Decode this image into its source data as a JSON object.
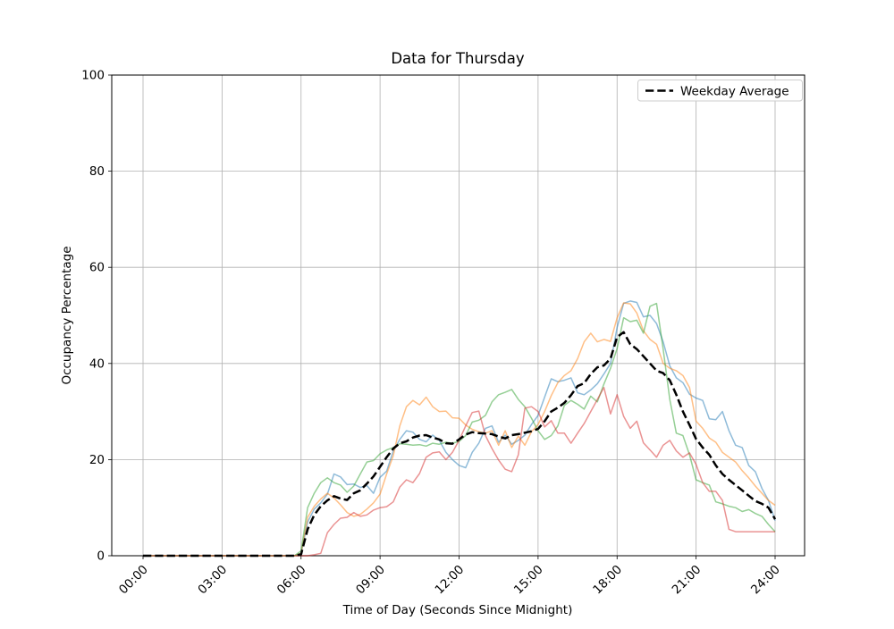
{
  "chart_data": {
    "type": "line",
    "title": "Data for Thursday",
    "xlabel": "Time of Day (Seconds Since Midnight)",
    "ylabel": "Occupancy Percentage",
    "legend_label": "Weekday Average",
    "legend_position": "upper right",
    "grid": true,
    "ylim": [
      0,
      100
    ],
    "y_ticks": [
      0,
      20,
      40,
      60,
      80,
      100
    ],
    "x_tick_hours": [
      0,
      3,
      6,
      9,
      12,
      15,
      18,
      21,
      24
    ],
    "x_tick_labels": [
      "00:00",
      "03:00",
      "06:00",
      "09:00",
      "12:00",
      "15:00",
      "18:00",
      "21:00",
      "24:00"
    ],
    "x_start_hour": 0,
    "x_step_hours": 0.25,
    "colors": {
      "grid": "#b0b0b0",
      "spine": "#000000",
      "average_line": "#000000",
      "legend_edge": "#cccccc",
      "background": "#ffffff"
    },
    "series": [
      {
        "name": "series-blue",
        "color": "#1f77b4",
        "alpha": 0.5,
        "width": 1.5,
        "dashed": false,
        "values": [
          0,
          0,
          0,
          0,
          0,
          0,
          0,
          0,
          0,
          0,
          0,
          0,
          0,
          0,
          0,
          0,
          0,
          0,
          0,
          0,
          0,
          0,
          0,
          0,
          0.5,
          7,
          9.7,
          11,
          12.8,
          17,
          16.4,
          14.8,
          14.9,
          14.2,
          14.6,
          13,
          16.3,
          17.6,
          21.8,
          24.2,
          26,
          25.7,
          24.2,
          23.7,
          25.1,
          24,
          21.5,
          20,
          18.8,
          18.3,
          21.5,
          23.4,
          26.5,
          27,
          23.6,
          25.1,
          23.2,
          24,
          25.1,
          27.3,
          29.2,
          33,
          36.8,
          36.2,
          36.5,
          37,
          33.9,
          33.5,
          34.5,
          35.8,
          37.8,
          40,
          47.5,
          52.5,
          53,
          52.7,
          49.7,
          50,
          48.3,
          44.5,
          39.5,
          37,
          36,
          33.6,
          32.8,
          32.3,
          28.5,
          28.3,
          30,
          26,
          23,
          22.5,
          18.8,
          17.5,
          14,
          11.5,
          7.3
        ]
      },
      {
        "name": "series-orange",
        "color": "#ff7f0e",
        "alpha": 0.5,
        "width": 1.5,
        "dashed": false,
        "values": [
          0,
          0,
          0,
          0,
          0,
          0,
          0,
          0,
          0,
          0,
          0,
          0,
          0,
          0,
          0,
          0,
          0,
          0,
          0,
          0,
          0,
          0,
          0,
          0,
          0.5,
          8,
          10.3,
          11.8,
          13,
          12,
          10.6,
          9,
          8.2,
          8.6,
          9.7,
          11,
          12.8,
          17,
          20.8,
          27,
          31,
          32.3,
          31.4,
          33,
          31,
          30,
          30.1,
          28.7,
          28.6,
          27.2,
          26.3,
          25.8,
          25.5,
          26,
          23,
          26,
          22.5,
          24.9,
          23,
          25.8,
          27.3,
          30,
          33.3,
          36,
          37.5,
          38.5,
          41,
          44.5,
          46.3,
          44.5,
          45,
          44.6,
          49.5,
          52.6,
          52.4,
          50.5,
          46.8,
          45,
          44,
          40,
          39,
          38.5,
          37.5,
          35,
          28,
          26.5,
          24.5,
          23.6,
          21.5,
          20.5,
          19.5,
          17.7,
          16.2,
          14.5,
          13,
          11.5,
          10.5
        ]
      },
      {
        "name": "series-green",
        "color": "#2ca02c",
        "alpha": 0.5,
        "width": 1.5,
        "dashed": false,
        "values": [
          0,
          0,
          0,
          0,
          0,
          0,
          0,
          0,
          0,
          0,
          0,
          0,
          0,
          0,
          0,
          0,
          0,
          0,
          0,
          0,
          0,
          0,
          0,
          0,
          1,
          10,
          13,
          15.2,
          16.2,
          15.2,
          14.7,
          13.2,
          14.5,
          17,
          19.5,
          19.8,
          21.2,
          22,
          22.5,
          23.3,
          23.2,
          23,
          23.1,
          22.8,
          23.4,
          23.2,
          23.6,
          23.4,
          23.8,
          25,
          27.8,
          28.2,
          29.2,
          32,
          33.5,
          34,
          34.6,
          32.5,
          31,
          28.6,
          26,
          24.2,
          25,
          27,
          31.3,
          32.3,
          31.5,
          30.5,
          33.2,
          32,
          35.7,
          39,
          43.1,
          49.5,
          48.7,
          49,
          46.3,
          51.9,
          52.5,
          43,
          32.5,
          25.5,
          25,
          21,
          15.8,
          15.2,
          14.7,
          11.2,
          10.8,
          10.3,
          10,
          9.2,
          9.6,
          8.8,
          8.2,
          6.5,
          5
        ]
      },
      {
        "name": "series-red",
        "color": "#d62728",
        "alpha": 0.5,
        "width": 1.5,
        "dashed": false,
        "values": [
          0,
          0,
          0,
          0,
          0,
          0,
          0,
          0,
          0,
          0,
          0,
          0,
          0,
          0,
          0,
          0,
          0,
          0,
          0,
          0,
          0,
          0,
          0,
          0,
          0,
          0,
          0.2,
          0.5,
          4.8,
          6.5,
          7.8,
          8,
          9,
          8.2,
          8.5,
          9.5,
          10,
          10.2,
          11.2,
          14.3,
          15.8,
          15.2,
          17.1,
          20.5,
          21.4,
          21.6,
          20,
          21.5,
          24,
          27,
          29.8,
          30.1,
          25,
          22.3,
          19.9,
          18,
          17.5,
          21,
          30.7,
          31,
          30,
          26.8,
          28.1,
          25.5,
          25.5,
          23.4,
          25.5,
          27.5,
          30,
          32.5,
          35,
          29.5,
          33.5,
          29,
          26.5,
          28,
          23.5,
          22,
          20.5,
          23,
          24,
          21.8,
          20.5,
          21.4,
          19,
          15.2,
          13.4,
          13.4,
          11.5,
          5.5,
          5,
          5,
          5,
          5,
          5,
          5,
          5
        ]
      },
      {
        "name": "Weekday Average",
        "color": "#000000",
        "alpha": 1,
        "width": 2.5,
        "dashed": true,
        "values": [
          0,
          0,
          0,
          0,
          0,
          0,
          0,
          0,
          0,
          0,
          0,
          0,
          0,
          0,
          0,
          0,
          0,
          0,
          0,
          0,
          0,
          0,
          0,
          0,
          0.3,
          5.5,
          8.5,
          10.3,
          11.5,
          12.4,
          11.9,
          11.6,
          13,
          13.6,
          15,
          16.5,
          18.5,
          20.5,
          22.3,
          23.4,
          23.8,
          24.6,
          25,
          25.1,
          24.6,
          24.2,
          23.4,
          23.3,
          24.2,
          25.2,
          25.7,
          25.5,
          25.4,
          25.3,
          24.8,
          24.4,
          25.1,
          25.3,
          25.6,
          25.9,
          26.4,
          28,
          30,
          30.8,
          31.8,
          33.4,
          35.3,
          35.9,
          37.8,
          39.2,
          39.6,
          41,
          45.5,
          46.5,
          44,
          43,
          41.5,
          40,
          38.5,
          38,
          36.5,
          33.5,
          30,
          27.2,
          24.3,
          22.5,
          21,
          18.8,
          17,
          15.8,
          14.7,
          13.6,
          12.5,
          11.4,
          10.8,
          10,
          7.6
        ]
      }
    ]
  }
}
